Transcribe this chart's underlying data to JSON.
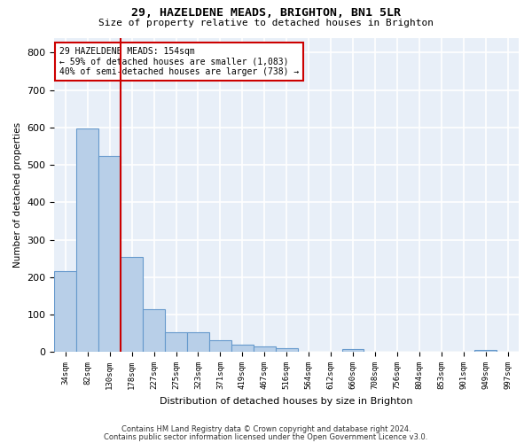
{
  "title_line1": "29, HAZELDENE MEADS, BRIGHTON, BN1 5LR",
  "title_line2": "Size of property relative to detached houses in Brighton",
  "xlabel": "Distribution of detached houses by size in Brighton",
  "ylabel": "Number of detached properties",
  "bar_labels": [
    "34sqm",
    "82sqm",
    "130sqm",
    "178sqm",
    "227sqm",
    "275sqm",
    "323sqm",
    "371sqm",
    "419sqm",
    "467sqm",
    "516sqm",
    "564sqm",
    "612sqm",
    "660sqm",
    "708sqm",
    "756sqm",
    "804sqm",
    "853sqm",
    "901sqm",
    "949sqm",
    "997sqm"
  ],
  "bar_values": [
    215,
    598,
    525,
    255,
    115,
    53,
    53,
    31,
    20,
    15,
    10,
    0,
    0,
    8,
    0,
    0,
    0,
    0,
    0,
    5,
    0
  ],
  "bar_color": "#b8cfe8",
  "bar_edgecolor": "#6699cc",
  "bg_color": "#e8eff8",
  "grid_color": "#ffffff",
  "vline_x": 2.5,
  "vline_color": "#cc0000",
  "annotation_text": "29 HAZELDENE MEADS: 154sqm\n← 59% of detached houses are smaller (1,083)\n40% of semi-detached houses are larger (738) →",
  "annotation_box_color": "#cc0000",
  "ylim": [
    0,
    840
  ],
  "yticks": [
    0,
    100,
    200,
    300,
    400,
    500,
    600,
    700,
    800
  ],
  "footer_line1": "Contains HM Land Registry data © Crown copyright and database right 2024.",
  "footer_line2": "Contains public sector information licensed under the Open Government Licence v3.0."
}
